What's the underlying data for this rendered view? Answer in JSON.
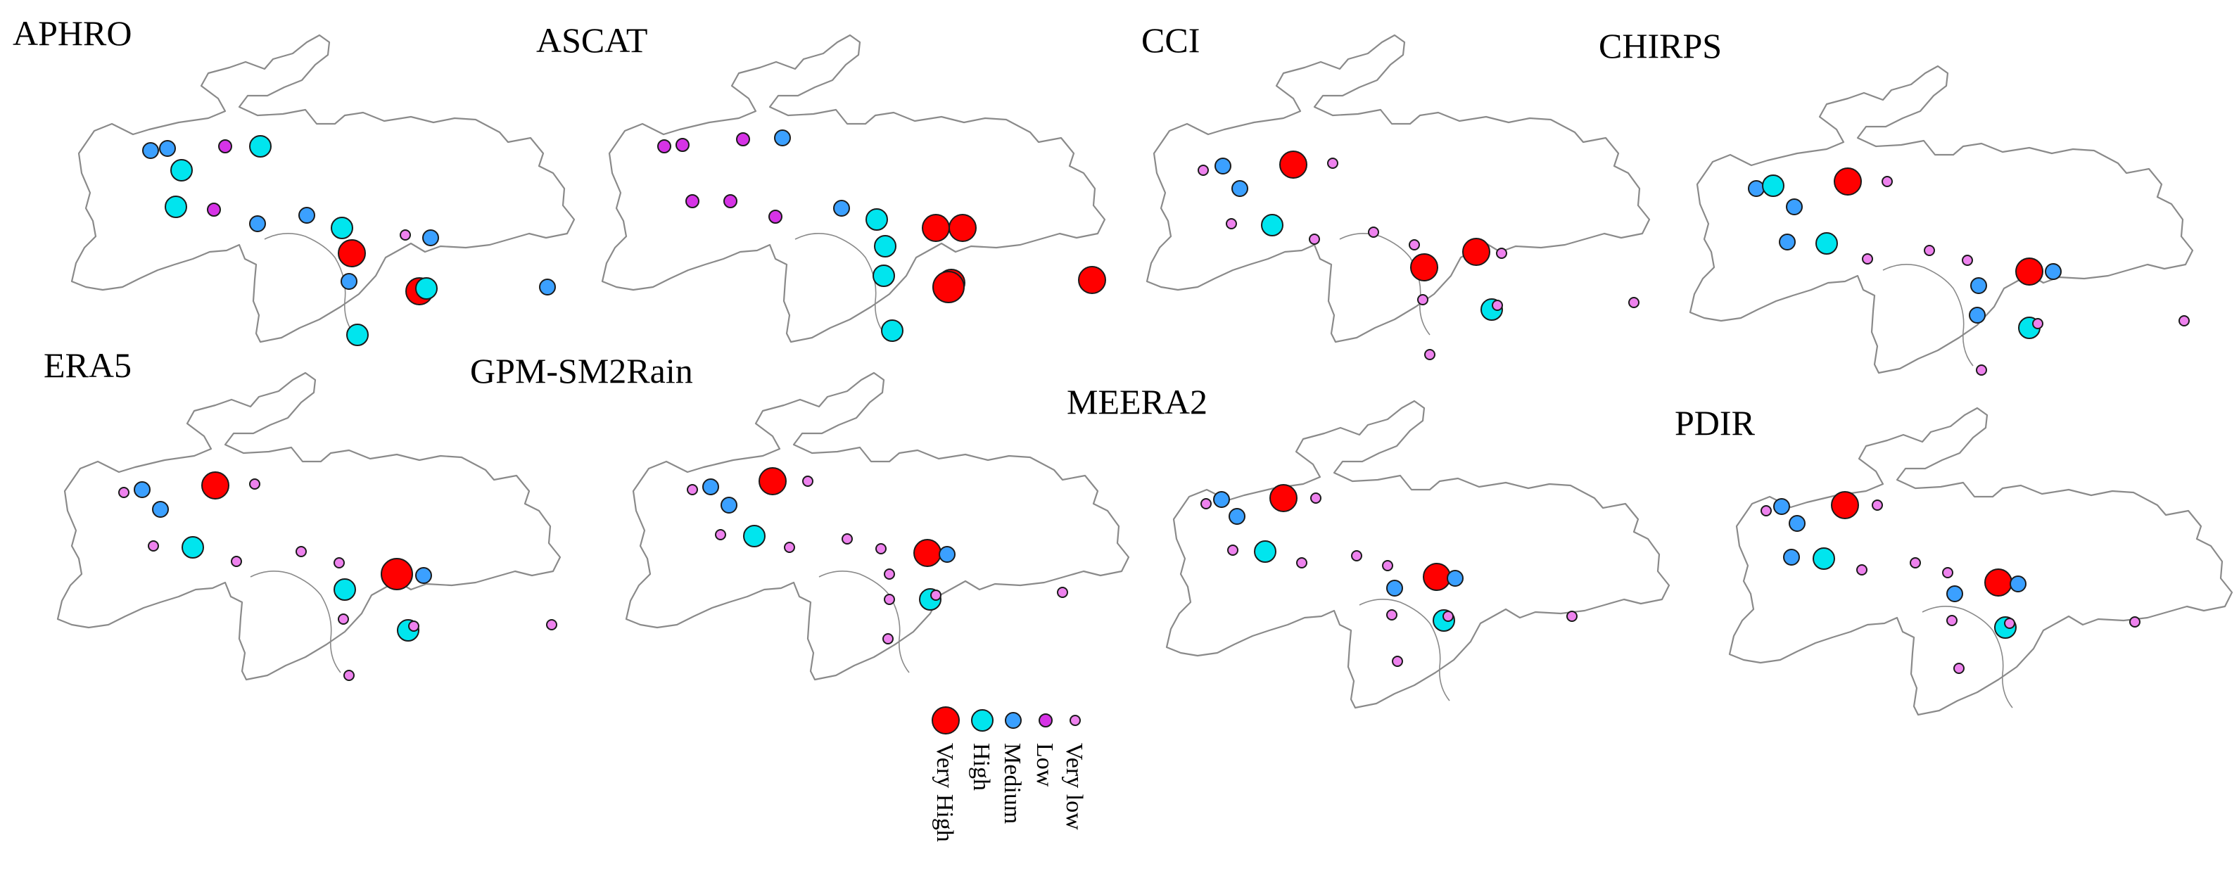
{
  "classes": [
    {
      "key": "very_high",
      "label": "Very High",
      "color": "#ff0000"
    },
    {
      "key": "high",
      "label": "High",
      "color": "#00e5ee"
    },
    {
      "key": "medium",
      "label": "Medium",
      "color": "#3ba0ff"
    },
    {
      "key": "low",
      "label": "Low",
      "color": "#d633e6"
    },
    {
      "key": "very_low",
      "label": "Very low",
      "color": "#ee82ee"
    }
  ],
  "panels": [
    {
      "title": "APHRO"
    },
    {
      "title": "ASCAT"
    },
    {
      "title": "CCI"
    },
    {
      "title": "CHIRPS"
    },
    {
      "title": "ERA5"
    },
    {
      "title": "GPM-SM2Rain"
    },
    {
      "title": "MEERA2"
    },
    {
      "title": "PDIR"
    }
  ]
}
